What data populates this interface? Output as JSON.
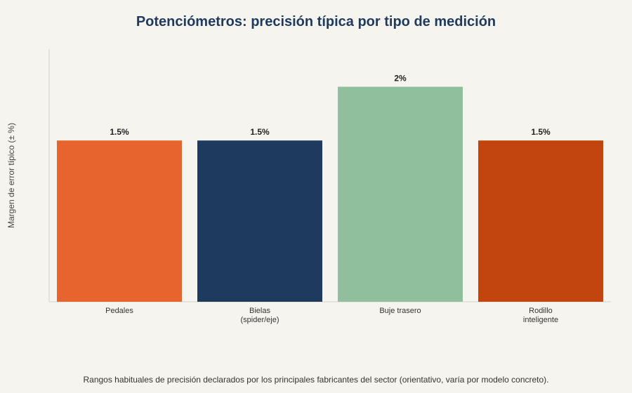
{
  "chart_data": {
    "type": "bar",
    "title": "Potenciómetros: precisión típica por tipo de medición",
    "ylabel": "Margen de error típico (± %)",
    "xlabel": "",
    "categories": [
      [
        "Pedales"
      ],
      [
        "Bielas",
        "(spider/eje)"
      ],
      [
        "Buje trasero"
      ],
      [
        "Rodillo",
        "inteligente"
      ]
    ],
    "values": [
      1.5,
      1.5,
      2,
      1.5
    ],
    "value_labels": [
      "1.5%",
      "1.5%",
      "2%",
      "1.5%"
    ],
    "colors": [
      "#e8642f",
      "#1e3a5f",
      "#90bf9e",
      "#c2440f"
    ],
    "ylim": [
      0,
      2.35
    ],
    "grid": false,
    "legend": "none"
  },
  "footnote": "Rangos habituales de precisión declarados por los principales fabricantes del sector (orientativo, varía por modelo concreto)."
}
